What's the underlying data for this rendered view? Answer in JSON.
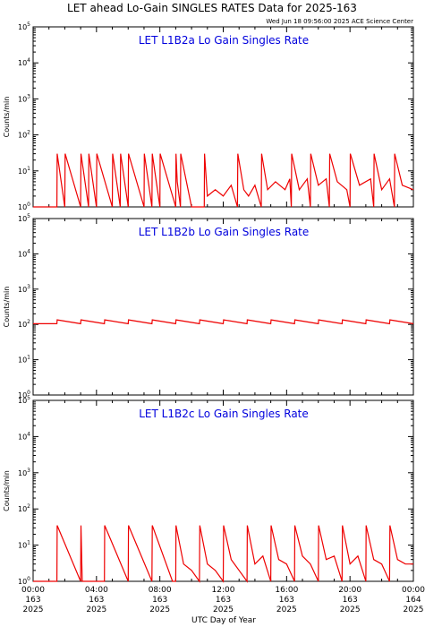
{
  "title": "LET ahead Lo-Gain SINGLES RATES Data for 2025-163",
  "timestamp": "Wed Jun 18 09:56:00 2025 ACE Science Center",
  "xlabel": "UTC Day of Year",
  "colors": {
    "data": "#ee0000",
    "panel_title": "#0000dd",
    "axes": "#000000"
  },
  "chart_data": [
    {
      "type": "line",
      "title": "LET L1B2a Lo Gain Singles Rate",
      "ylabel": "Counts/min",
      "yscale": "log",
      "ylim": [
        1,
        100000
      ],
      "xlim": [
        0,
        24
      ],
      "y_tick_labels": [
        "10^0",
        "10^1",
        "10^2",
        "10^3",
        "10^4",
        "10^5"
      ],
      "series": [
        {
          "x": [
            0,
            1.0,
            1.5,
            1.52,
            2.0,
            2.02,
            3.0,
            3.02,
            3.5,
            3.52,
            4.0,
            4.02,
            5.0,
            5.02,
            5.5,
            5.52,
            6.0,
            6.02,
            7.0,
            7.02,
            7.5,
            7.52,
            8.0,
            8.02,
            9.0,
            9.02,
            9.1,
            9.3,
            9.32,
            10.0,
            10.8,
            10.82,
            11.0,
            11.5,
            12.0,
            12.5,
            12.9,
            12.92,
            13.3,
            13.6,
            14.0,
            14.4,
            14.42,
            14.8,
            15.3,
            15.9,
            16.2,
            16.3,
            16.32,
            16.8,
            17.3,
            17.5,
            17.52,
            18.0,
            18.5,
            18.7,
            18.72,
            19.2,
            19.8,
            20.0,
            20.02,
            20.6,
            21.3,
            21.5,
            21.52,
            22.0,
            22.5,
            22.8,
            22.82,
            23.3,
            24.0
          ],
          "y": [
            1,
            1,
            1,
            30,
            1,
            30,
            1,
            30,
            1,
            30,
            1,
            30,
            1,
            30,
            1,
            30,
            1,
            30,
            1,
            30,
            1,
            30,
            1,
            30,
            1,
            30,
            5,
            1,
            30,
            1,
            1,
            30,
            2,
            3,
            2,
            4,
            1,
            30,
            3,
            2,
            4,
            1,
            30,
            3,
            5,
            3,
            6,
            1,
            30,
            3,
            6,
            1,
            30,
            4,
            6,
            1,
            30,
            5,
            3,
            1,
            30,
            4,
            6,
            1,
            30,
            3,
            6,
            1,
            30,
            4,
            3
          ]
        }
      ]
    },
    {
      "type": "line",
      "title": "LET L1B2b Lo Gain Singles Rate",
      "ylabel": "Counts/min",
      "yscale": "log",
      "ylim": [
        1,
        100000
      ],
      "xlim": [
        0,
        24
      ],
      "y_tick_labels": [
        "10^0",
        "10^1",
        "10^2",
        "10^3",
        "10^4",
        "10^5"
      ],
      "series": [
        {
          "x": [
            0,
            1.5,
            1.52,
            3.0,
            3.02,
            4.5,
            4.52,
            6.0,
            6.02,
            7.5,
            7.52,
            9.0,
            9.02,
            10.5,
            10.52,
            12.0,
            12.02,
            13.5,
            13.52,
            15.0,
            15.02,
            16.5,
            16.52,
            18.0,
            18.02,
            19.5,
            19.52,
            21.0,
            21.02,
            22.5,
            22.52,
            24.0
          ],
          "y": [
            105,
            105,
            135,
            105,
            135,
            105,
            135,
            105,
            135,
            105,
            135,
            105,
            135,
            105,
            135,
            105,
            135,
            105,
            135,
            105,
            135,
            105,
            135,
            105,
            135,
            105,
            135,
            105,
            135,
            105,
            135,
            105
          ]
        }
      ]
    },
    {
      "type": "line",
      "title": "LET L1B2c Lo Gain Singles Rate",
      "ylabel": "Counts/min",
      "yscale": "log",
      "ylim": [
        1,
        100000
      ],
      "xlim": [
        0,
        24
      ],
      "y_tick_labels": [
        "10^0",
        "10^1",
        "10^2",
        "10^3",
        "10^4",
        "10^5"
      ],
      "series": [
        {
          "x": [
            0,
            1.5,
            1.52,
            3.0,
            3.02,
            3.1,
            4.5,
            4.52,
            6.0,
            6.02,
            7.5,
            7.52,
            8.8,
            9.0,
            9.02,
            9.5,
            10.0,
            10.5,
            10.52,
            11.0,
            11.5,
            12.0,
            12.02,
            12.5,
            13.0,
            13.5,
            13.52,
            14.0,
            14.5,
            15.0,
            15.02,
            15.5,
            16.0,
            16.5,
            16.52,
            17.0,
            17.5,
            18.0,
            18.02,
            18.5,
            19.0,
            19.5,
            19.52,
            20.0,
            20.5,
            21.0,
            21.02,
            21.5,
            22.0,
            22.5,
            22.52,
            23.0,
            23.5,
            24.0
          ],
          "y": [
            1,
            1,
            35,
            1,
            35,
            1,
            1,
            35,
            1,
            35,
            1,
            35,
            1,
            1,
            35,
            3,
            2,
            1,
            35,
            3,
            2,
            1,
            35,
            4,
            2,
            1,
            35,
            3,
            5,
            1,
            35,
            4,
            3,
            1,
            35,
            5,
            3,
            1,
            35,
            4,
            5,
            1,
            35,
            3,
            5,
            1,
            35,
            4,
            3,
            1,
            35,
            4,
            3,
            3
          ]
        }
      ]
    }
  ],
  "x_ticks": [
    {
      "x": 0,
      "time": "00:00",
      "doy": "163",
      "year": "2025"
    },
    {
      "x": 4,
      "time": "04:00",
      "doy": "163",
      "year": "2025"
    },
    {
      "x": 8,
      "time": "08:00",
      "doy": "163",
      "year": "2025"
    },
    {
      "x": 12,
      "time": "12:00",
      "doy": "163",
      "year": "2025"
    },
    {
      "x": 16,
      "time": "16:00",
      "doy": "163",
      "year": "2025"
    },
    {
      "x": 20,
      "time": "20:00",
      "doy": "163",
      "year": "2025"
    },
    {
      "x": 24,
      "time": "00:00",
      "doy": "164",
      "year": "2025"
    }
  ]
}
